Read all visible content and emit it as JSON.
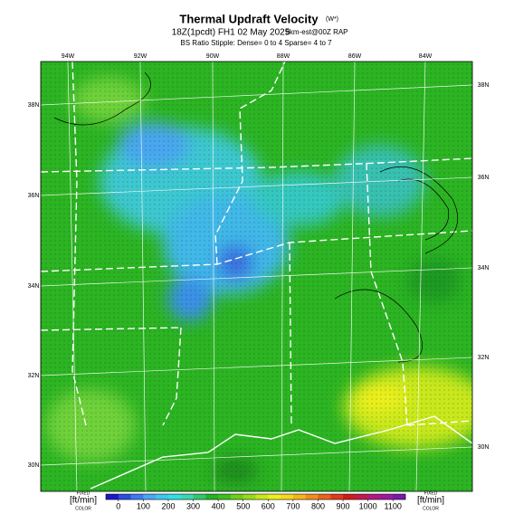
{
  "map": {
    "title": "Thermal Updraft Velocity",
    "title_unit": "(W*)",
    "subtitle": "18Z(1pcdt) FH1 02 May 2025",
    "source": "9km-est@00Z RAP",
    "stipple_note": "BS Ratio Stipple: Dense= 0 to 4  Sparse= 4 to 7",
    "lon_labels": [
      "94W",
      "92W",
      "90W",
      "88W",
      "86W",
      "84W"
    ],
    "lat_labels_left": [
      "38N",
      "36N",
      "34N",
      "32N",
      "30N"
    ],
    "lat_labels_right": [
      "38N",
      "36N",
      "34N",
      "32N",
      "30N"
    ],
    "colorbar": {
      "lim": [
        -50,
        1150
      ],
      "ticks": [
        0,
        100,
        200,
        300,
        400,
        500,
        600,
        700,
        800,
        900,
        1000,
        1100
      ],
      "colors": [
        "#1a1acc",
        "#2a4ee0",
        "#3a7cf0",
        "#4aa6f6",
        "#3cc8f0",
        "#30e0e8",
        "#3ad8b0",
        "#30c870",
        "#22b422",
        "#3cc01e",
        "#6cd018",
        "#98dc18",
        "#c8e81a",
        "#eef01a",
        "#f8d81a",
        "#f8b41a",
        "#f0901a",
        "#e8641a",
        "#e03a1a",
        "#d01a1a",
        "#c01a50",
        "#b01a80",
        "#9a1aa0",
        "#7a1aa8"
      ],
      "unit_left": "[ft/min]",
      "unit_right": "[ft/min]",
      "left_note": "FIXED",
      "left_sub": "COLOR",
      "right_note": "FIXED",
      "right_sub": "COLOR"
    }
  }
}
